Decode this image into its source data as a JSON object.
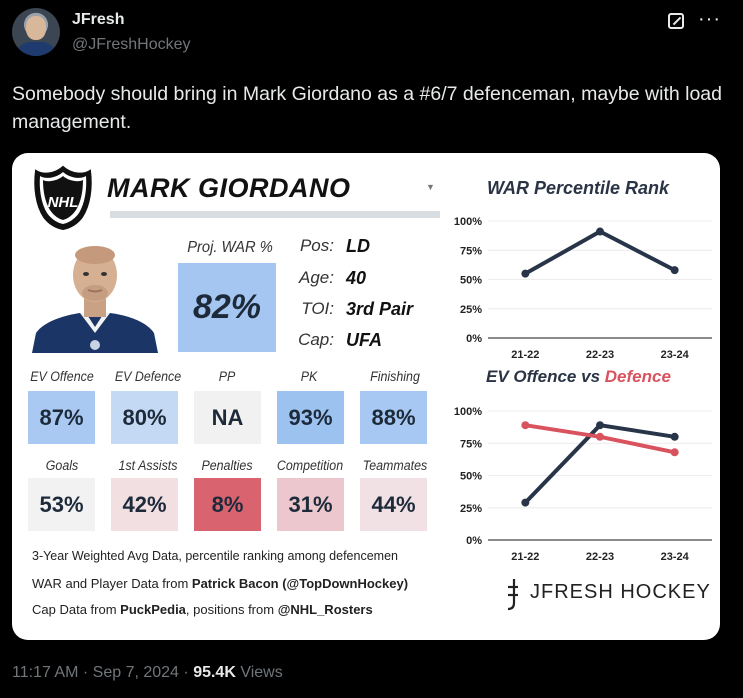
{
  "author": {
    "name": "JFresh",
    "handle": "@JFreshHockey"
  },
  "tweet": {
    "text": "Somebody should bring in Mark Giordano as a #6/7 defenceman, maybe with load management."
  },
  "meta": {
    "time": "11:17 AM",
    "date": "Sep 7, 2024",
    "views_count": "95.4K",
    "views_label": "Views",
    "sep": "·"
  },
  "card": {
    "player_name": "MARK GIORDANO",
    "proj_war_label": "Proj. WAR %",
    "proj_war_value": "82%",
    "info": [
      {
        "key": "Pos:",
        "value": "LD"
      },
      {
        "key": "Age:",
        "value": "40"
      },
      {
        "key": "TOI:",
        "value": "3rd Pair"
      },
      {
        "key": "Cap:",
        "value": "UFA"
      }
    ],
    "row1": [
      {
        "label": "EV Offence",
        "value": "87%",
        "color": "#a9c9f2"
      },
      {
        "label": "EV Defence",
        "value": "80%",
        "color": "#c4d9f4"
      },
      {
        "label": "PP",
        "value": "NA",
        "color": "#f1f1f1"
      },
      {
        "label": "PK",
        "value": "93%",
        "color": "#9cc2f0"
      },
      {
        "label": "Finishing",
        "value": "88%",
        "color": "#a7c8f2"
      }
    ],
    "row2": [
      {
        "label": "Goals",
        "value": "53%",
        "color": "#f2f2f2"
      },
      {
        "label": "1st Assists",
        "value": "42%",
        "color": "#f1dfe2"
      },
      {
        "label": "Penalties",
        "value": "8%",
        "color": "#d9636f"
      },
      {
        "label": "Competition",
        "value": "31%",
        "color": "#ecc7cd"
      },
      {
        "label": "Teammates",
        "value": "44%",
        "color": "#f2e1e4"
      }
    ],
    "footnote": "3-Year Weighted Avg Data, percentile ranking among defencemen",
    "source_line1": {
      "prefix": "WAR and Player Data from ",
      "bold": "Patrick Bacon (@TopDownHockey)"
    },
    "source_line2": {
      "prefix1": "Cap Data from ",
      "bold1": "PuckPedia",
      "mid": ", positions from ",
      "bold2": "@NHL_Rosters"
    },
    "brand": "JFRESH HOCKEY",
    "logo_text": "NHL"
  },
  "chart_data": [
    {
      "type": "line",
      "title": "WAR Percentile Rank",
      "categories": [
        "21-22",
        "22-23",
        "23-24"
      ],
      "series": [
        {
          "values": [
            55,
            91,
            58
          ],
          "color": "#283548"
        }
      ],
      "ylim": [
        0,
        100
      ],
      "yticks": [
        "0%",
        "25%",
        "50%",
        "75%",
        "100%"
      ]
    },
    {
      "type": "line",
      "title_part1": "EV Offence",
      "title_part2": "vs",
      "title_part3": "Defence",
      "categories": [
        "21-22",
        "22-23",
        "23-24"
      ],
      "series": [
        {
          "values": [
            29,
            89,
            80
          ],
          "color": "#283548"
        },
        {
          "values": [
            89,
            80,
            68
          ],
          "color": "#d9535f"
        }
      ],
      "ylim": [
        0,
        100
      ],
      "yticks": [
        "0%",
        "25%",
        "50%",
        "75%",
        "100%"
      ]
    }
  ]
}
